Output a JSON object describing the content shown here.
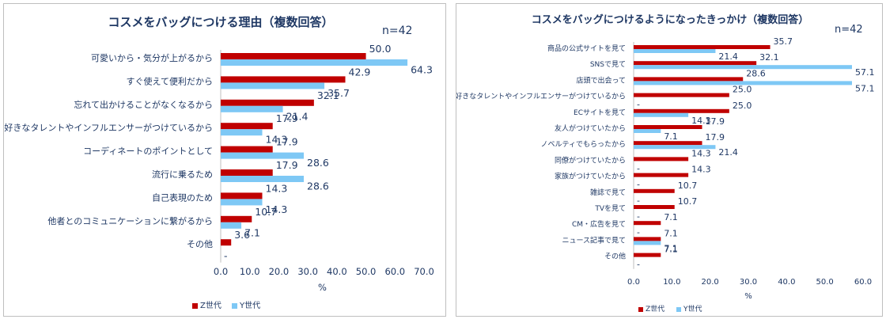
{
  "colors": {
    "z": "#c00000",
    "y": "#7ec8f5",
    "text": "#1f3864",
    "axis": "#bfbfbf"
  },
  "chart_data": [
    {
      "type": "bar",
      "orientation": "horizontal",
      "title": "コスメをバッグにつける理由（複数回答）",
      "n_label": "n=42",
      "xlabel": "%",
      "xlim": [
        0,
        70
      ],
      "xticks": [
        "0.0",
        "10.0",
        "20.0",
        "30.0",
        "40.0",
        "50.0",
        "60.0",
        "70.0"
      ],
      "categories": [
        "可愛いから・気分が上がるから",
        "すぐ使えて便利だから",
        "忘れて出かけることがなくなるから",
        "好きなタレントやインフルエンサーがつけているから",
        "コーディネートのポイントとして",
        "流行に乗るため",
        "自己表現のため",
        "他者とのコミュニケーションに繋がるから",
        "その他"
      ],
      "series": [
        {
          "name": "Z世代",
          "values": [
            50.0,
            42.9,
            32.1,
            17.9,
            17.9,
            17.9,
            14.3,
            10.7,
            3.6
          ],
          "labels": [
            "50.0",
            "42.9",
            "32.1",
            "17.9",
            "17.9",
            "17.9",
            "14.3",
            "10.7",
            "3.6"
          ]
        },
        {
          "name": "Y世代",
          "values": [
            64.3,
            35.7,
            21.4,
            14.3,
            28.6,
            28.6,
            14.3,
            7.1,
            0
          ],
          "labels": [
            "64.3",
            "35.7",
            "21.4",
            "14.3",
            "28.6",
            "28.6",
            "14.3",
            "7.1",
            "-"
          ]
        }
      ],
      "legend": [
        "Z世代",
        "Y世代"
      ]
    },
    {
      "type": "bar",
      "orientation": "horizontal",
      "title": "コスメをバッグにつけるようになったきっかけ（複数回答）",
      "n_label": "n=42",
      "xlabel": "%",
      "xlim": [
        0,
        60
      ],
      "xticks": [
        "0.0",
        "10.0",
        "20.0",
        "30.0",
        "40.0",
        "50.0",
        "60.0"
      ],
      "categories": [
        "商品の公式サイトを見て",
        "SNSで見て",
        "店頭で出会って",
        "好きなタレントやインフルエンサーがつけているから",
        "ECサイトを見て",
        "友人がつけていたから",
        "ノベルティでもらったから",
        "同僚がつけていたから",
        "家族がつけていたから",
        "雑誌で見て",
        "TVを見て",
        "CM・広告を見て",
        "ニュース記事で見て",
        "その他"
      ],
      "series": [
        {
          "name": "Z世代",
          "values": [
            35.7,
            32.1,
            28.6,
            25.0,
            25.0,
            17.9,
            17.9,
            14.3,
            14.3,
            10.7,
            10.7,
            7.1,
            7.1,
            7.1
          ],
          "labels": [
            "35.7",
            "32.1",
            "28.6",
            "25.0",
            "25.0",
            "17.9",
            "17.9",
            "14.3",
            "14.3",
            "10.7",
            "10.7",
            "7.1",
            "7.1",
            "7.1"
          ]
        },
        {
          "name": "Y世代",
          "values": [
            21.4,
            57.1,
            57.1,
            0,
            14.3,
            7.1,
            21.4,
            0,
            0,
            0,
            0,
            0,
            7.1,
            0
          ],
          "labels": [
            "21.4",
            "57.1",
            "57.1",
            "-",
            "14.3",
            "7.1",
            "21.4",
            "-",
            "-",
            "-",
            "-",
            "-",
            "7.1",
            "-"
          ]
        }
      ],
      "legend": [
        "Z世代",
        "Y世代"
      ]
    }
  ]
}
